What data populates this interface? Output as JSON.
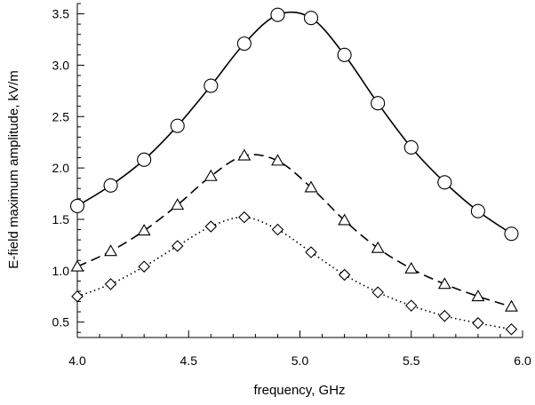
{
  "chart_data": {
    "type": "line",
    "title": "",
    "xlabel": "frequency, GHz",
    "ylabel": "E-field maximum amplitude, kV/m",
    "xlim": [
      4.0,
      6.0
    ],
    "ylim": [
      0.35,
      3.6
    ],
    "xticks": [
      "4.0",
      "4.5",
      "5.0",
      "5.5",
      "6.0"
    ],
    "yticks": [
      "0.5",
      "1.0",
      "1.5",
      "2.0",
      "2.5",
      "3.0",
      "3.5"
    ],
    "grid": false,
    "legend": "none",
    "x": [
      4.0,
      4.15,
      4.3,
      4.45,
      4.6,
      4.75,
      4.9,
      5.05,
      5.2,
      5.35,
      5.5,
      5.65,
      5.8,
      5.95
    ],
    "series": [
      {
        "marker": "circle",
        "line_style": "solid",
        "values": [
          1.63,
          1.83,
          2.08,
          2.41,
          2.8,
          3.21,
          3.49,
          3.46,
          3.1,
          2.63,
          2.2,
          1.86,
          1.58,
          1.36
        ]
      },
      {
        "marker": "triangle",
        "line_style": "dashed",
        "values": [
          1.04,
          1.19,
          1.39,
          1.64,
          1.92,
          2.12,
          2.07,
          1.81,
          1.49,
          1.22,
          1.02,
          0.87,
          0.75,
          0.65
        ]
      },
      {
        "marker": "diamond",
        "line_style": "dotted",
        "values": [
          0.75,
          0.87,
          1.04,
          1.24,
          1.43,
          1.52,
          1.4,
          1.18,
          0.96,
          0.79,
          0.66,
          0.56,
          0.49,
          0.43
        ]
      }
    ],
    "colors": {
      "line": "#000000",
      "marker_fill": "#ffffff"
    }
  }
}
